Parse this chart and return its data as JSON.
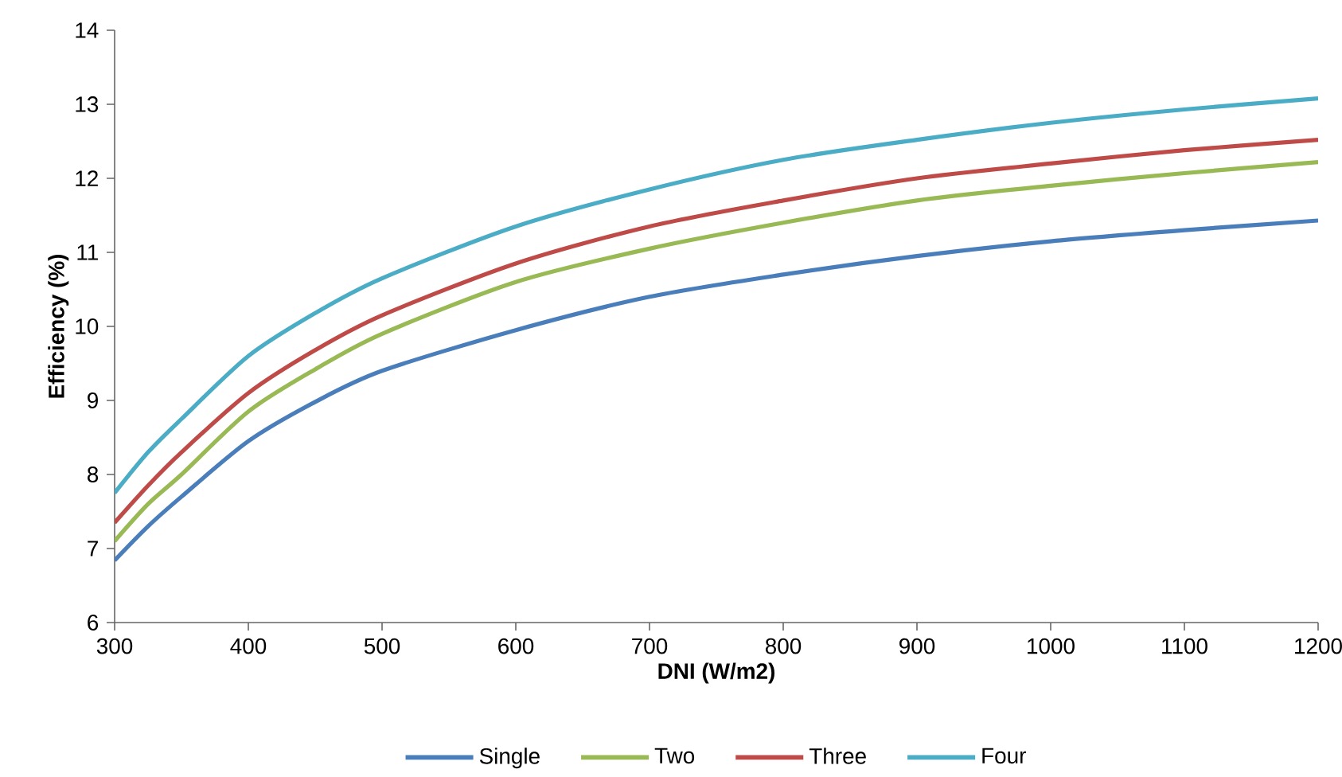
{
  "chart_data": {
    "type": "line",
    "xlabel": "DNI (W/m2)",
    "ylabel": "Efficiency (%)",
    "xlim": [
      300,
      1200
    ],
    "ylim": [
      6,
      14
    ],
    "xticks": [
      300,
      400,
      500,
      600,
      700,
      800,
      900,
      1000,
      1100,
      1200
    ],
    "yticks": [
      6,
      7,
      8,
      9,
      10,
      11,
      12,
      13,
      14
    ],
    "grid": false,
    "legend": "bottom",
    "marker": "none",
    "line_style": "solid",
    "series": [
      {
        "name": "Single",
        "color": "#4a7ebb",
        "x": [
          300,
          325,
          350,
          400,
          450,
          500,
          600,
          700,
          800,
          900,
          1000,
          1100,
          1200
        ],
        "values": [
          6.84,
          7.3,
          7.7,
          8.45,
          8.98,
          9.4,
          9.95,
          10.4,
          10.7,
          10.95,
          11.15,
          11.3,
          11.43
        ]
      },
      {
        "name": "Two",
        "color": "#98b954",
        "x": [
          300,
          325,
          350,
          400,
          450,
          500,
          600,
          700,
          800,
          900,
          1000,
          1100,
          1200
        ],
        "values": [
          7.1,
          7.6,
          8.0,
          8.85,
          9.42,
          9.9,
          10.6,
          11.05,
          11.4,
          11.7,
          11.9,
          12.07,
          12.22
        ]
      },
      {
        "name": "Three",
        "color": "#be4b48",
        "x": [
          300,
          325,
          350,
          400,
          450,
          500,
          600,
          700,
          800,
          900,
          1000,
          1100,
          1200
        ],
        "values": [
          7.35,
          7.85,
          8.3,
          9.1,
          9.68,
          10.15,
          10.85,
          11.35,
          11.7,
          12.0,
          12.2,
          12.38,
          12.52
        ]
      },
      {
        "name": "Four",
        "color": "#4bacc6",
        "x": [
          300,
          325,
          350,
          400,
          450,
          500,
          600,
          700,
          800,
          900,
          1000,
          1100,
          1200
        ],
        "values": [
          7.75,
          8.3,
          8.75,
          9.6,
          10.18,
          10.65,
          11.35,
          11.85,
          12.25,
          12.52,
          12.75,
          12.93,
          13.08
        ]
      }
    ]
  }
}
